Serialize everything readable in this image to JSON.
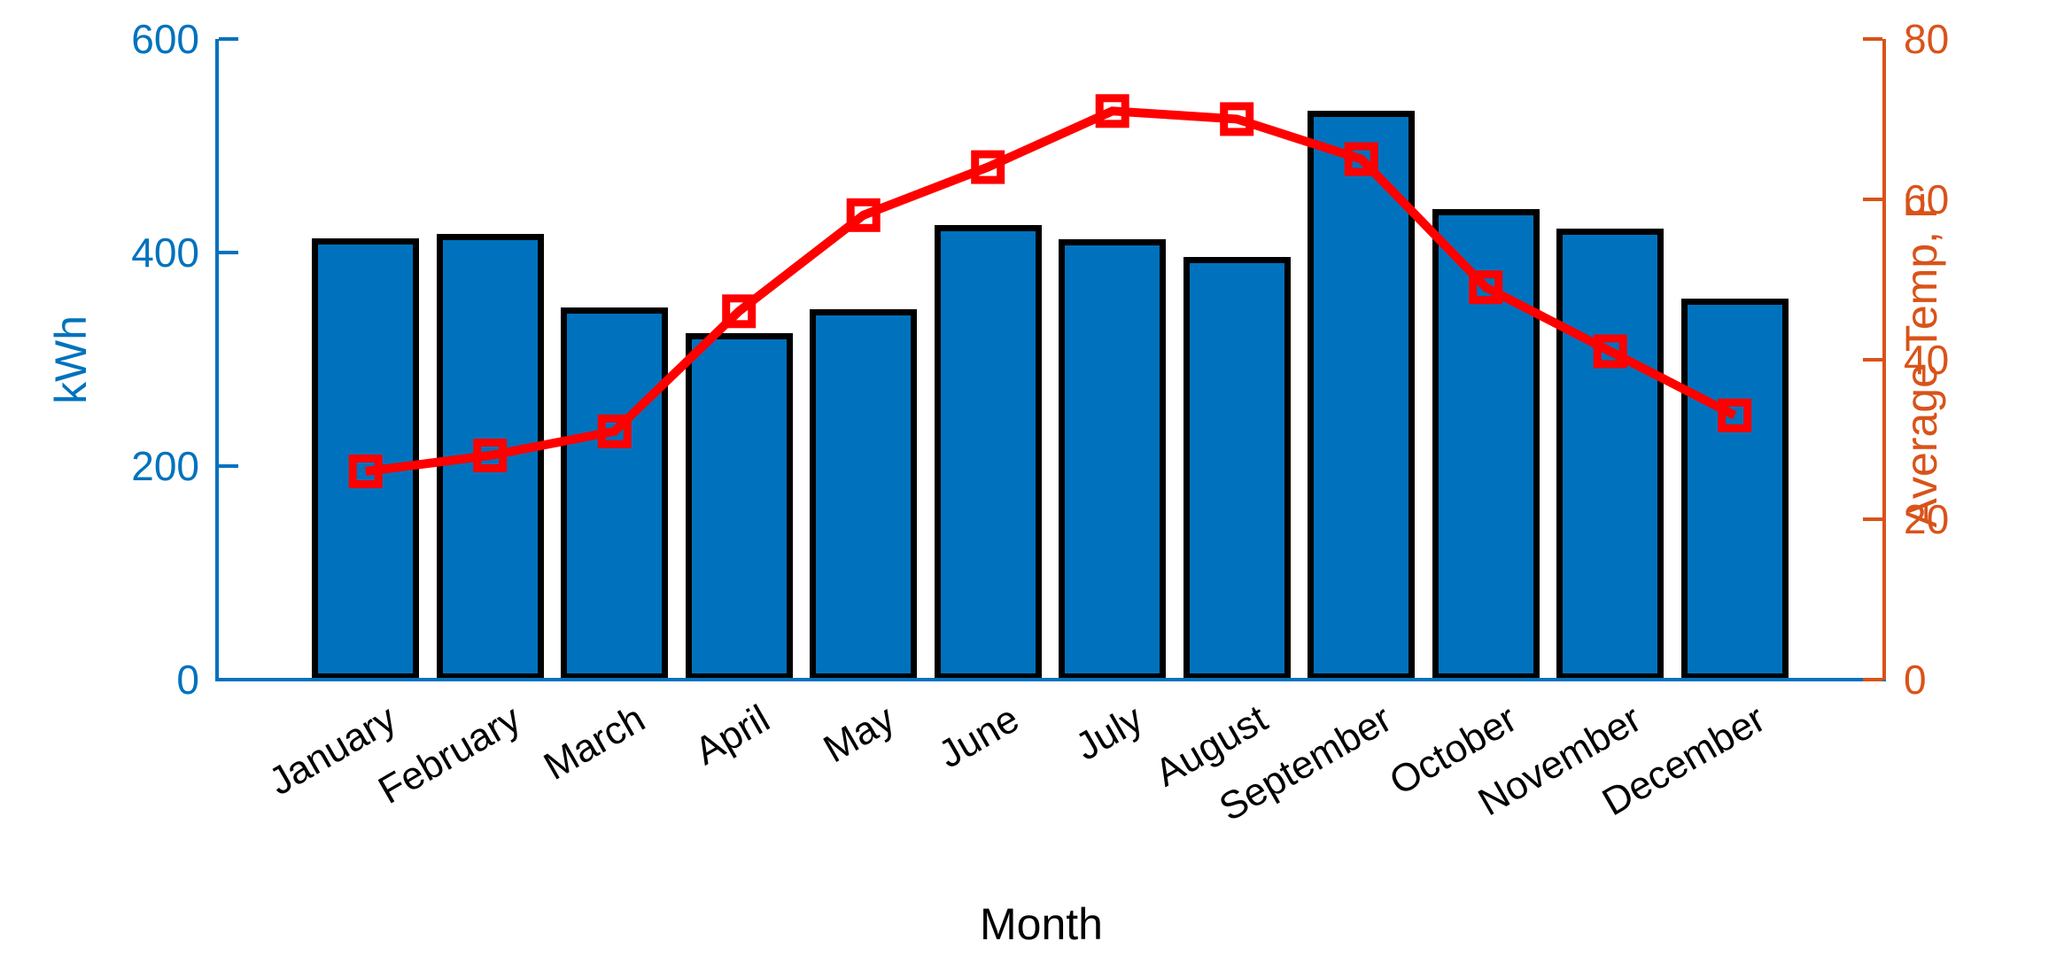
{
  "chart_data": {
    "type": "combo",
    "title": "",
    "categories": [
      "January",
      "February",
      "March",
      "April",
      "May",
      "June",
      "July",
      "August",
      "September",
      "October",
      "November",
      "December"
    ],
    "series": [
      {
        "name": "electricity-usage-bars",
        "type": "bar",
        "axis": "left",
        "values": [
          411,
          415,
          346,
          322,
          344,
          423,
          410,
          393,
          530,
          438,
          420,
          354
        ],
        "color": "#0072BD",
        "edge_color": "#000000"
      },
      {
        "name": "average-temperature-line",
        "type": "line",
        "axis": "right",
        "values": [
          26,
          28,
          31,
          46,
          58,
          64,
          71,
          70,
          65,
          49,
          41,
          33
        ],
        "color": "#FF0000",
        "marker": "open-square"
      }
    ],
    "left_axis": {
      "label": "kWh",
      "ticks": [
        "0",
        "200",
        "400",
        "600"
      ],
      "tick_values": [
        0,
        200,
        400,
        600
      ],
      "range": [
        0,
        600
      ],
      "color": "#0072BD"
    },
    "right_axis": {
      "label": "Average Temp, F",
      "ticks": [
        "0",
        "20",
        "40",
        "60",
        "80"
      ],
      "tick_values": [
        0,
        20,
        40,
        60,
        80
      ],
      "range": [
        0,
        80
      ],
      "color": "#D95319"
    },
    "x_axis": {
      "label": "Month",
      "tick_rotation_deg": 30,
      "color": "#000000"
    },
    "legend": "none",
    "grid": "off"
  },
  "labels": {
    "left_axis_title": "kWh",
    "right_axis_title": "Average Temp, F",
    "x_axis_title": "Month"
  },
  "colors": {
    "bar_fill": "#0072BD",
    "bar_edge": "#000000",
    "left_axis": "#0072BD",
    "right_axis": "#D95319",
    "line": "#FF0000",
    "text": "#000000",
    "background": "#FFFFFF"
  }
}
